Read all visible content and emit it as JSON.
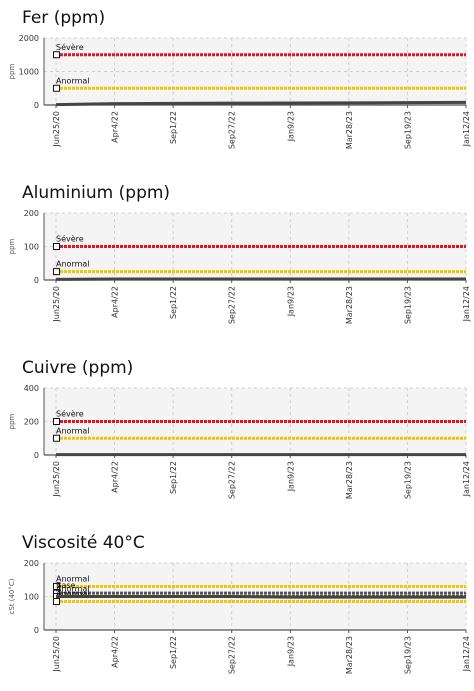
{
  "chart_data": [
    {
      "type": "line",
      "title": "Fer (ppm)",
      "ylabel": "ppm",
      "ylim": [
        0,
        2000
      ],
      "yticks": [
        "0",
        "1000",
        "2000"
      ],
      "x": [
        "Jun25/20",
        "Apr4/22",
        "Sep1/22",
        "Sep27/22",
        "Jan9/23",
        "Mar28/23",
        "Sep19/23",
        "Jan12/24"
      ],
      "grid": true,
      "colors": {
        "severe": "#e8141a",
        "abnormal": "#f5c400",
        "data": "#444444"
      },
      "thresholds": [
        {
          "name": "Sévère",
          "value": 1500,
          "color": "#e8141a"
        },
        {
          "name": "Anormal",
          "value": 500,
          "color": "#f5c400"
        }
      ],
      "series": [
        {
          "values": [
            10,
            40,
            50,
            55,
            60,
            65,
            70,
            80
          ]
        }
      ]
    },
    {
      "type": "line",
      "title": "Aluminium (ppm)",
      "ylabel": "ppm",
      "ylim": [
        0,
        200
      ],
      "yticks": [
        "0",
        "100",
        "200"
      ],
      "x": [
        "Jun25/20",
        "Apr4/22",
        "Sep1/22",
        "Sep27/22",
        "Jan9/23",
        "Mar28/23",
        "Sep19/23",
        "Jan12/24"
      ],
      "grid": true,
      "colors": {
        "severe": "#e8141a",
        "abnormal": "#f5c400",
        "data": "#444444"
      },
      "thresholds": [
        {
          "name": "Sévère",
          "value": 100,
          "color": "#e8141a"
        },
        {
          "name": "Anormal",
          "value": 25,
          "color": "#f5c400"
        }
      ],
      "series": [
        {
          "values": [
            2,
            3,
            3,
            3,
            3,
            3,
            3,
            3
          ]
        }
      ]
    },
    {
      "type": "line",
      "title": "Cuivre (ppm)",
      "ylabel": "ppm",
      "ylim": [
        0,
        400
      ],
      "yticks": [
        "0",
        "200",
        "400"
      ],
      "x": [
        "Jun25/20",
        "Apr4/22",
        "Sep1/22",
        "Sep27/22",
        "Jan9/23",
        "Mar28/23",
        "Sep19/23",
        "Jan12/24"
      ],
      "grid": true,
      "colors": {
        "severe": "#e8141a",
        "abnormal": "#f5c400",
        "data": "#444444"
      },
      "thresholds": [
        {
          "name": "Sévère",
          "value": 200,
          "color": "#e8141a"
        },
        {
          "name": "Anormal",
          "value": 100,
          "color": "#f5c400"
        }
      ],
      "series": [
        {
          "values": [
            2,
            2,
            2,
            2,
            2,
            2,
            2,
            2
          ]
        }
      ]
    },
    {
      "type": "line",
      "title": "Viscosité 40°C",
      "ylabel": "cSt (40°C)",
      "ylim": [
        0,
        200
      ],
      "yticks": [
        "0",
        "100",
        "200"
      ],
      "x": [
        "Jun25/20",
        "Apr4/22",
        "Sep1/22",
        "Sep27/22",
        "Jan9/23",
        "Mar28/23",
        "Sep19/23",
        "Jan12/24"
      ],
      "grid": true,
      "colors": {
        "severe": "#e8141a",
        "abnormal": "#f5c400",
        "data": "#444444"
      },
      "thresholds": [
        {
          "name": "Anormal",
          "value": 130,
          "color": "#f5c400"
        },
        {
          "name": "Base",
          "value": 110,
          "color": "#555555"
        },
        {
          "name": "Anormal",
          "value": 100,
          "color": "#555555"
        },
        {
          "name": "Anormal",
          "value": 85,
          "color": "#f5c400"
        }
      ],
      "series": [
        {
          "values": [
            100,
            100,
            100,
            100,
            98,
            98,
            98,
            98
          ]
        }
      ]
    }
  ]
}
